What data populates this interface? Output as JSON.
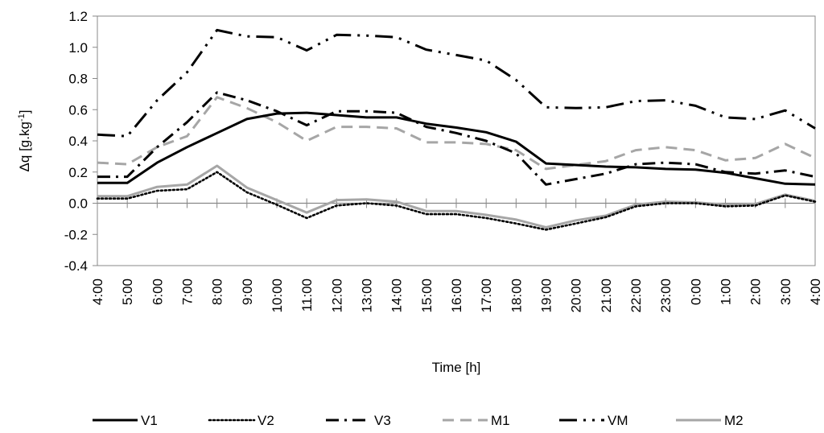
{
  "chart_data": {
    "type": "line",
    "title": "",
    "xlabel": "Time [h]",
    "ylabel_main": "Δq [g.kg",
    "ylabel_sup": "-1",
    "ylabel_close": "]",
    "ylim": [
      -0.4,
      1.2
    ],
    "yticks": [
      -0.4,
      -0.2,
      0.0,
      0.2,
      0.4,
      0.6,
      0.8,
      1.0,
      1.2
    ],
    "ytick_labels": [
      "-0.4",
      "-0.2",
      "0.0",
      "0.2",
      "0.4",
      "0.6",
      "0.8",
      "1.0",
      "1.2"
    ],
    "grid": false,
    "legend_position": "bottom",
    "categories": [
      "4:00",
      "5:00",
      "6:00",
      "7:00",
      "8:00",
      "9:00",
      "10:00",
      "11:00",
      "12:00",
      "13:00",
      "14:00",
      "15:00",
      "16:00",
      "17:00",
      "18:00",
      "19:00",
      "20:00",
      "21:00",
      "22:00",
      "23:00",
      "0:00",
      "1:00",
      "2:00",
      "3:00",
      "4:00"
    ],
    "series": [
      {
        "name": "V1",
        "color": "#000000",
        "dash": "solid",
        "values": [
          0.13,
          0.13,
          0.26,
          0.36,
          0.45,
          0.54,
          0.575,
          0.58,
          0.565,
          0.55,
          0.55,
          0.51,
          0.485,
          0.455,
          0.395,
          0.255,
          0.245,
          0.235,
          0.23,
          0.22,
          0.215,
          0.195,
          0.16,
          0.125,
          0.12
        ]
      },
      {
        "name": "V2",
        "color": "#000000",
        "dash": "dot",
        "values": [
          0.03,
          0.03,
          0.08,
          0.09,
          0.2,
          0.07,
          -0.01,
          -0.095,
          -0.015,
          0.0,
          -0.015,
          -0.07,
          -0.07,
          -0.095,
          -0.13,
          -0.17,
          -0.13,
          -0.09,
          -0.02,
          0.0,
          0.0,
          -0.02,
          -0.015,
          0.05,
          0.01
        ]
      },
      {
        "name": "V3",
        "color": "#000000",
        "dash": "dashdot",
        "values": [
          0.17,
          0.17,
          0.36,
          0.52,
          0.71,
          0.66,
          0.59,
          0.5,
          0.59,
          0.59,
          0.58,
          0.49,
          0.45,
          0.4,
          0.32,
          0.12,
          0.155,
          0.19,
          0.25,
          0.26,
          0.25,
          0.2,
          0.19,
          0.21,
          0.17
        ]
      },
      {
        "name": "M1",
        "color": "#a6a6a6",
        "dash": "dash",
        "values": [
          0.26,
          0.25,
          0.36,
          0.43,
          0.68,
          0.61,
          0.52,
          0.4,
          0.49,
          0.49,
          0.48,
          0.39,
          0.39,
          0.38,
          0.34,
          0.22,
          0.245,
          0.27,
          0.34,
          0.36,
          0.34,
          0.275,
          0.29,
          0.38,
          0.29
        ]
      },
      {
        "name": "VM",
        "color": "#000000",
        "dash": "longdashdotdot",
        "values": [
          0.44,
          0.43,
          0.66,
          0.84,
          1.11,
          1.07,
          1.065,
          0.98,
          1.08,
          1.075,
          1.065,
          0.985,
          0.95,
          0.915,
          0.79,
          0.615,
          0.61,
          0.615,
          0.655,
          0.66,
          0.625,
          0.55,
          0.54,
          0.595,
          0.48
        ]
      },
      {
        "name": "M2",
        "color": "#a6a6a6",
        "dash": "solid",
        "values": [
          0.045,
          0.045,
          0.105,
          0.12,
          0.24,
          0.1,
          0.02,
          -0.06,
          0.02,
          0.025,
          0.01,
          -0.05,
          -0.05,
          -0.075,
          -0.105,
          -0.155,
          -0.11,
          -0.08,
          -0.01,
          0.01,
          0.005,
          -0.01,
          -0.005,
          0.055,
          0.015
        ]
      }
    ]
  }
}
